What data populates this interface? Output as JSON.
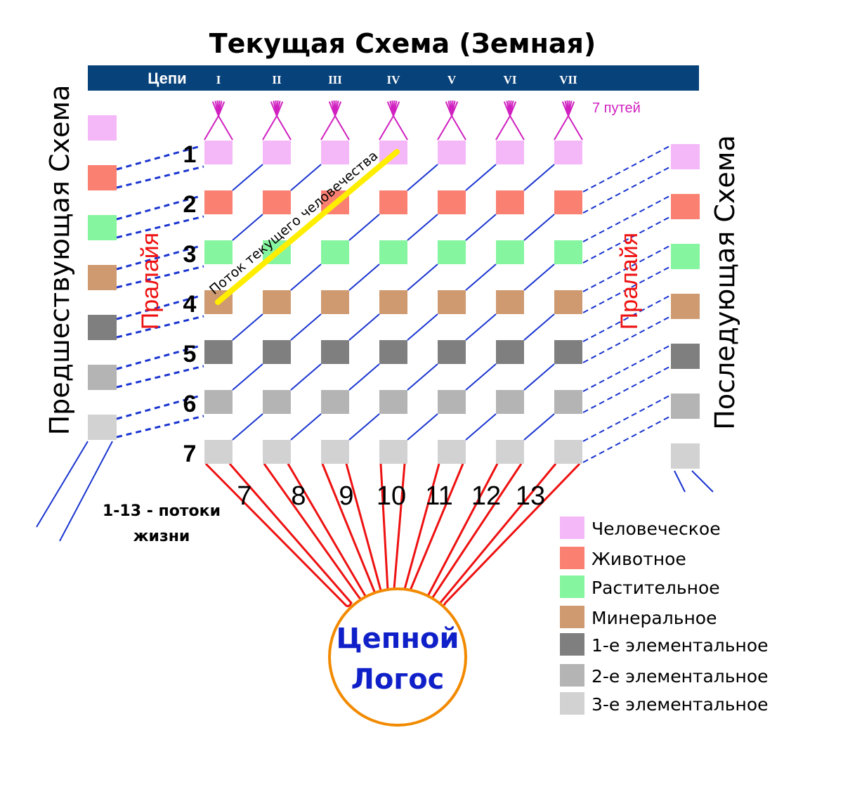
{
  "title": "Текущая Схема (Земная)",
  "header": {
    "label": "Цепи",
    "chains": [
      "I",
      "II",
      "III",
      "IV",
      "V",
      "VI",
      "VII"
    ]
  },
  "paths_label": "7 путей",
  "row_labels": [
    "1",
    "2",
    "3",
    "4",
    "5",
    "6",
    "7"
  ],
  "left_label": "Предшествующая Схема",
  "right_label": "Последующая Схема",
  "pralaya_left": "Пралайя",
  "pralaya_right": "Пралайя",
  "stream_label": "Поток текущего человечества",
  "stream_numbers": [
    "7",
    "8",
    "9",
    "10",
    "11",
    "12",
    "13"
  ],
  "streams_caption": [
    "1-13 - потоки",
    "жизни"
  ],
  "logos": [
    "Цепной",
    "Логос"
  ],
  "legend": [
    {
      "label": "Человеческое",
      "color": "#f4b8f8"
    },
    {
      "label": "Животное",
      "color": "#fa8072"
    },
    {
      "label": "Растительное",
      "color": "#86f5a0"
    },
    {
      "label": "Минеральное",
      "color": "#cf9a70"
    },
    {
      "label": "1-е элементальное",
      "color": "#7f7f7f"
    },
    {
      "label": "2-е элементальное",
      "color": "#b4b4b4"
    },
    {
      "label": "3-е элементальное",
      "color": "#d2d2d2"
    }
  ],
  "colors": {
    "header_bar": "#08427a",
    "stream_lines": "#1a35d0",
    "red_streams": "#ee1111",
    "logos_circle": "#f28a00",
    "logos_text": "#1020c8",
    "highlight": "#ffee00",
    "paths": "#d020c0",
    "pralaya": "#ee1111"
  }
}
